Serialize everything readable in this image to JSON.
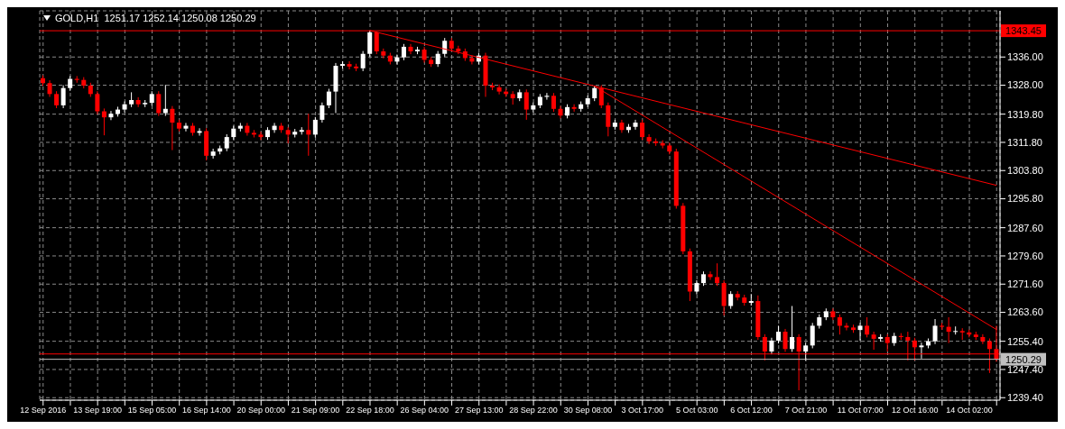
{
  "chart_data": {
    "type": "candlestick",
    "title": "GOLD,H1  1251.17 1252.14 1250.08 1250.29",
    "categories": [
      "12 Sep 2016",
      null,
      null,
      null,
      null,
      null,
      null,
      null,
      "13 Sep 19:00",
      null,
      null,
      null,
      null,
      null,
      null,
      null,
      "15 Sep 05:00",
      null,
      null,
      null,
      null,
      null,
      null,
      null,
      "16 Sep 14:00",
      null,
      null,
      null,
      null,
      null,
      null,
      null,
      "20 Sep 00:00",
      null,
      null,
      null,
      null,
      null,
      null,
      null,
      "21 Sep 09:00",
      null,
      null,
      null,
      null,
      null,
      null,
      null,
      "22 Sep 18:00",
      null,
      null,
      null,
      null,
      null,
      null,
      null,
      "26 Sep 04:00",
      null,
      null,
      null,
      null,
      null,
      null,
      null,
      "27 Sep 13:00",
      null,
      null,
      null,
      null,
      null,
      null,
      null,
      "28 Sep 22:00",
      null,
      null,
      null,
      null,
      null,
      null,
      null,
      "30 Sep 08:00",
      null,
      null,
      null,
      null,
      null,
      null,
      null,
      "3 Oct 17:00",
      null,
      null,
      null,
      null,
      null,
      null,
      null,
      "5 Oct 03:00",
      null,
      null,
      null,
      null,
      null,
      null,
      null,
      "6 Oct 12:00",
      null,
      null,
      null,
      null,
      null,
      null,
      null,
      "7 Oct 21:00",
      null,
      null,
      null,
      null,
      null,
      null,
      null,
      "11 Oct 07:00",
      null,
      null,
      null,
      null,
      null,
      null,
      null,
      "12 Oct 16:00",
      null,
      null,
      null,
      null,
      null,
      null,
      null,
      "14 Oct 02:00",
      null,
      null,
      null,
      null
    ],
    "ohlc": [
      [
        1330.0,
        1330.8,
        1327.8,
        1328.6
      ],
      [
        1328.6,
        1329.4,
        1324.7,
        1325.5
      ],
      [
        1325.5,
        1326.3,
        1321.5,
        1322.3
      ],
      [
        1322.3,
        1328.0,
        1321.5,
        1327.2
      ],
      [
        1327.2,
        1330.6,
        1326.4,
        1329.8
      ],
      [
        1329.8,
        1330.6,
        1328.7,
        1329.5
      ],
      [
        1329.5,
        1330.3,
        1327.1,
        1327.9
      ],
      [
        1327.9,
        1328.7,
        1324.7,
        1325.5
      ],
      [
        1325.5,
        1326.3,
        1319.8,
        1320.6
      ],
      [
        1320.6,
        1321.4,
        1313.8,
        1318.9
      ],
      [
        1318.9,
        1320.7,
        1318.1,
        1319.9
      ],
      [
        1319.9,
        1321.9,
        1319.1,
        1321.1
      ],
      [
        1321.1,
        1323.4,
        1320.3,
        1322.6
      ],
      [
        1322.6,
        1326.0,
        1321.8,
        1323.8
      ],
      [
        1323.8,
        1324.6,
        1321.8,
        1322.6
      ],
      [
        1322.6,
        1323.8,
        1321.8,
        1323.0
      ],
      [
        1323.0,
        1326.3,
        1322.2,
        1325.5
      ],
      [
        1325.5,
        1326.3,
        1319.3,
        1320.1
      ],
      [
        1320.1,
        1328.1,
        1319.3,
        1321.3
      ],
      [
        1321.3,
        1322.1,
        1309.6,
        1317.4
      ],
      [
        1317.4,
        1318.2,
        1314.9,
        1315.7
      ],
      [
        1315.7,
        1317.3,
        1314.9,
        1316.5
      ],
      [
        1316.5,
        1317.3,
        1313.7,
        1314.5
      ],
      [
        1314.5,
        1315.8,
        1313.7,
        1315.0
      ],
      [
        1315.0,
        1315.8,
        1306.7,
        1308.0
      ],
      [
        1308.0,
        1310.0,
        1307.2,
        1309.2
      ],
      [
        1309.2,
        1310.9,
        1308.4,
        1310.1
      ],
      [
        1310.1,
        1314.1,
        1309.3,
        1313.3
      ],
      [
        1313.3,
        1316.5,
        1312.5,
        1315.7
      ],
      [
        1315.7,
        1317.3,
        1314.9,
        1316.5
      ],
      [
        1316.5,
        1317.3,
        1313.7,
        1314.5
      ],
      [
        1314.5,
        1315.3,
        1313.2,
        1314.0
      ],
      [
        1314.0,
        1314.8,
        1312.5,
        1313.3
      ],
      [
        1313.3,
        1316.1,
        1312.5,
        1315.3
      ],
      [
        1315.3,
        1317.3,
        1314.5,
        1316.5
      ],
      [
        1316.5,
        1317.3,
        1314.5,
        1315.3
      ],
      [
        1315.3,
        1316.1,
        1311.5,
        1314.0
      ],
      [
        1314.0,
        1315.6,
        1313.2,
        1314.8
      ],
      [
        1314.8,
        1316.1,
        1314.0,
        1315.3
      ],
      [
        1315.3,
        1319.9,
        1308.0,
        1314.0
      ],
      [
        1314.0,
        1319.0,
        1313.2,
        1318.2
      ],
      [
        1318.2,
        1323.1,
        1317.4,
        1322.3
      ],
      [
        1322.3,
        1327.0,
        1321.5,
        1326.2
      ],
      [
        1326.2,
        1334.3,
        1320.1,
        1333.5
      ],
      [
        1333.5,
        1334.8,
        1332.7,
        1334.0
      ],
      [
        1334.0,
        1334.8,
        1332.5,
        1333.3
      ],
      [
        1333.3,
        1334.1,
        1332.0,
        1332.8
      ],
      [
        1332.8,
        1337.7,
        1332.0,
        1336.9
      ],
      [
        1336.9,
        1343.45,
        1336.1,
        1343.0
      ],
      [
        1343.0,
        1343.2,
        1336.8,
        1337.6
      ],
      [
        1337.6,
        1338.4,
        1335.6,
        1336.4
      ],
      [
        1336.4,
        1337.2,
        1333.9,
        1334.7
      ],
      [
        1334.7,
        1336.7,
        1333.9,
        1335.9
      ],
      [
        1335.9,
        1339.7,
        1335.1,
        1338.9
      ],
      [
        1338.9,
        1339.7,
        1336.8,
        1337.6
      ],
      [
        1337.6,
        1338.9,
        1336.8,
        1338.1
      ],
      [
        1338.1,
        1338.9,
        1334.4,
        1335.2
      ],
      [
        1335.2,
        1336.0,
        1333.2,
        1334.0
      ],
      [
        1334.0,
        1337.7,
        1333.2,
        1336.9
      ],
      [
        1336.9,
        1341.4,
        1336.1,
        1340.6
      ],
      [
        1340.6,
        1341.4,
        1337.6,
        1338.4
      ],
      [
        1338.4,
        1339.2,
        1336.8,
        1337.6
      ],
      [
        1337.6,
        1338.4,
        1334.9,
        1335.7
      ],
      [
        1335.7,
        1336.5,
        1333.9,
        1334.7
      ],
      [
        1334.7,
        1337.2,
        1333.9,
        1336.4
      ],
      [
        1336.4,
        1337.2,
        1324.7,
        1327.9
      ],
      [
        1327.9,
        1328.7,
        1326.6,
        1327.4
      ],
      [
        1327.4,
        1328.2,
        1325.4,
        1326.2
      ],
      [
        1326.2,
        1327.0,
        1324.7,
        1325.5
      ],
      [
        1325.5,
        1326.3,
        1322.5,
        1324.3
      ],
      [
        1324.3,
        1326.8,
        1323.5,
        1326.0
      ],
      [
        1326.0,
        1326.8,
        1318.2,
        1321.1
      ],
      [
        1321.1,
        1323.1,
        1320.3,
        1322.3
      ],
      [
        1322.3,
        1325.5,
        1321.5,
        1324.7
      ],
      [
        1324.7,
        1325.8,
        1323.9,
        1325.0
      ],
      [
        1325.0,
        1325.8,
        1320.5,
        1321.3
      ],
      [
        1321.3,
        1322.1,
        1318.6,
        1319.4
      ],
      [
        1319.4,
        1322.6,
        1318.6,
        1321.8
      ],
      [
        1321.8,
        1322.6,
        1320.5,
        1321.3
      ],
      [
        1321.3,
        1323.4,
        1320.5,
        1322.6
      ],
      [
        1322.6,
        1325.1,
        1321.8,
        1324.3
      ],
      [
        1324.3,
        1327.9,
        1323.5,
        1327.2
      ],
      [
        1327.2,
        1328.0,
        1321.5,
        1322.3
      ],
      [
        1322.3,
        1323.1,
        1313.5,
        1316.2
      ],
      [
        1316.2,
        1318.2,
        1315.4,
        1317.4
      ],
      [
        1317.4,
        1318.2,
        1314.5,
        1315.3
      ],
      [
        1315.3,
        1317.0,
        1314.5,
        1316.2
      ],
      [
        1316.2,
        1318.2,
        1315.4,
        1317.4
      ],
      [
        1317.4,
        1318.2,
        1312.5,
        1313.3
      ],
      [
        1313.3,
        1314.1,
        1311.3,
        1312.1
      ],
      [
        1312.1,
        1312.9,
        1310.8,
        1311.6
      ],
      [
        1311.6,
        1312.4,
        1310.1,
        1310.9
      ],
      [
        1310.9,
        1311.7,
        1308.4,
        1309.2
      ],
      [
        1309.2,
        1310.0,
        1293.0,
        1293.8
      ],
      [
        1293.8,
        1294.6,
        1280.1,
        1280.9
      ],
      [
        1280.9,
        1281.7,
        1266.8,
        1269.5
      ],
      [
        1269.5,
        1272.7,
        1268.7,
        1271.9
      ],
      [
        1271.9,
        1275.2,
        1271.1,
        1274.4
      ],
      [
        1274.4,
        1275.2,
        1272.8,
        1273.6
      ],
      [
        1273.6,
        1277.5,
        1271.1,
        1271.9
      ],
      [
        1271.9,
        1272.7,
        1262.7,
        1265.4
      ],
      [
        1265.4,
        1269.6,
        1264.6,
        1268.8
      ],
      [
        1268.8,
        1269.6,
        1267.0,
        1267.8
      ],
      [
        1267.8,
        1268.6,
        1265.5,
        1266.3
      ],
      [
        1266.3,
        1268.8,
        1265.5,
        1266.8
      ],
      [
        1266.8,
        1268.4,
        1255.8,
        1256.6
      ],
      [
        1256.6,
        1257.4,
        1250.0,
        1252.5
      ],
      [
        1252.5,
        1256.4,
        1251.7,
        1255.6
      ],
      [
        1255.6,
        1259.8,
        1254.8,
        1258.1
      ],
      [
        1258.1,
        1258.9,
        1252.4,
        1253.2
      ],
      [
        1253.2,
        1265.4,
        1252.4,
        1256.6
      ],
      [
        1256.6,
        1257.4,
        1241.5,
        1252.5
      ],
      [
        1252.5,
        1255.0,
        1249.9,
        1254.2
      ],
      [
        1254.2,
        1260.6,
        1253.4,
        1259.8
      ],
      [
        1259.8,
        1263.0,
        1259.0,
        1262.2
      ],
      [
        1262.2,
        1264.7,
        1261.4,
        1263.9
      ],
      [
        1263.9,
        1264.7,
        1261.4,
        1262.2
      ],
      [
        1262.2,
        1263.0,
        1257.3,
        1259.8
      ],
      [
        1259.8,
        1260.6,
        1258.5,
        1259.3
      ],
      [
        1259.3,
        1260.1,
        1257.8,
        1258.6
      ],
      [
        1258.6,
        1260.6,
        1255.6,
        1259.8
      ],
      [
        1259.8,
        1262.2,
        1256.5,
        1257.3
      ],
      [
        1257.3,
        1258.1,
        1253.0,
        1256.1
      ],
      [
        1256.1,
        1257.4,
        1255.3,
        1256.6
      ],
      [
        1256.6,
        1257.4,
        1252.5,
        1254.9
      ],
      [
        1254.9,
        1257.8,
        1254.1,
        1256.9
      ],
      [
        1256.9,
        1257.7,
        1255.8,
        1256.6
      ],
      [
        1256.6,
        1258.1,
        1250.0,
        1255.6
      ],
      [
        1255.6,
        1256.4,
        1250.0,
        1253.7
      ],
      [
        1253.7,
        1255.0,
        1250.5,
        1254.2
      ],
      [
        1254.2,
        1256.2,
        1253.4,
        1255.4
      ],
      [
        1255.4,
        1261.7,
        1254.6,
        1259.8
      ],
      [
        1259.8,
        1260.6,
        1258.7,
        1259.5
      ],
      [
        1259.5,
        1262.2,
        1254.9,
        1258.1
      ],
      [
        1258.1,
        1259.6,
        1257.3,
        1258.3
      ],
      [
        1258.3,
        1259.1,
        1255.8,
        1257.9
      ],
      [
        1257.9,
        1258.7,
        1256.5,
        1257.3
      ],
      [
        1257.3,
        1258.1,
        1255.8,
        1256.6
      ],
      [
        1256.6,
        1257.4,
        1254.6,
        1255.4
      ],
      [
        1255.4,
        1256.2,
        1246.4,
        1253.2
      ],
      [
        1253.2,
        1259.8,
        1249.6,
        1250.29
      ]
    ],
    "colors": [
      "#ff0000",
      "#ff0000",
      "#ff0000",
      "#ffffff",
      "#ffffff",
      "#ff0000",
      "#ff0000",
      "#ff0000",
      "#ff0000",
      "#ff0000",
      "#ffffff",
      "#ffffff",
      "#ffffff",
      "#ffffff",
      "#ff0000",
      "#ffffff",
      "#ffffff",
      "#ff0000",
      "#ffffff",
      "#ff0000",
      "#ff0000",
      "#ffffff",
      "#ff0000",
      "#ffffff",
      "#ff0000",
      "#ffffff",
      "#ffffff",
      "#ffffff",
      "#ffffff",
      "#ffffff",
      "#ff0000",
      "#ff0000",
      "#ff0000",
      "#ffffff",
      "#ffffff",
      "#ff0000",
      "#ff0000",
      "#ffffff",
      "#ffffff",
      "#ff0000",
      "#ffffff",
      "#ffffff",
      "#ffffff",
      "#ffffff",
      "#ffffff",
      "#ff0000",
      "#ff0000",
      "#ffffff",
      "#ffffff",
      "#ff0000",
      "#ff0000",
      "#ff0000",
      "#ffffff",
      "#ffffff",
      "#ff0000",
      "#ffffff",
      "#ff0000",
      "#ff0000",
      "#ffffff",
      "#ffffff",
      "#ff0000",
      "#ff0000",
      "#ff0000",
      "#ff0000",
      "#ffffff",
      "#ff0000",
      "#ff0000",
      "#ff0000",
      "#ff0000",
      "#ff0000",
      "#ffffff",
      "#ff0000",
      "#ffffff",
      "#ffffff",
      "#ffffff",
      "#ff0000",
      "#ff0000",
      "#ffffff",
      "#ff0000",
      "#ffffff",
      "#ffffff",
      "#ffffff",
      "#ff0000",
      "#ff0000",
      "#ffffff",
      "#ff0000",
      "#ffffff",
      "#ffffff",
      "#ff0000",
      "#ff0000",
      "#ff0000",
      "#ff0000",
      "#ff0000",
      "#ff0000",
      "#ff0000",
      "#ff0000",
      "#ffffff",
      "#ffffff",
      "#ff0000",
      "#ff0000",
      "#ff0000",
      "#ffffff",
      "#ff0000",
      "#ff0000",
      "#ffffff",
      "#ff0000",
      "#ff0000",
      "#ffffff",
      "#ffffff",
      "#ff0000",
      "#ffffff",
      "#ff0000",
      "#ffffff",
      "#ffffff",
      "#ffffff",
      "#ffffff",
      "#ff0000",
      "#ff0000",
      "#ff0000",
      "#ff0000",
      "#ffffff",
      "#ff0000",
      "#ff0000",
      "#ffffff",
      "#ff0000",
      "#ffffff",
      "#ff0000",
      "#ff0000",
      "#ff0000",
      "#ffffff",
      "#ffffff",
      "#ffffff",
      "#ff0000",
      "#ff0000",
      "#ffffff",
      "#ff0000",
      "#ff0000",
      "#ff0000",
      "#ff0000",
      "#ff0000",
      "#ff0000"
    ],
    "series": [
      {
        "type": "line",
        "color": "#ff0000",
        "values": [
          null,
          null,
          null,
          null,
          null,
          null,
          null,
          null,
          null,
          null,
          null,
          null,
          null,
          null,
          null,
          null,
          null,
          null,
          null,
          null,
          null,
          null,
          null,
          null,
          null,
          null,
          null,
          null,
          null,
          null,
          null,
          null,
          null,
          null,
          null,
          null,
          null,
          null,
          null,
          null,
          null,
          null,
          null,
          null,
          null,
          null,
          null,
          null,
          1343.5,
          null,
          null,
          null,
          null,
          null,
          null,
          null,
          null,
          null,
          null,
          null,
          null,
          null,
          null,
          null,
          null,
          null,
          null,
          null,
          null,
          null,
          null,
          null,
          null,
          null,
          null,
          null,
          null,
          null,
          null,
          null,
          null,
          null,
          null,
          null,
          null,
          null,
          null,
          null,
          null,
          null,
          null,
          null,
          null,
          null,
          null,
          null,
          null,
          null,
          null,
          null,
          null,
          null,
          null,
          null,
          null,
          null,
          null,
          null,
          null,
          null,
          null,
          null,
          null,
          null,
          null,
          null,
          null,
          null,
          null,
          null,
          null,
          null,
          null,
          null,
          null,
          null,
          null,
          null,
          null,
          null,
          null,
          null,
          null,
          null,
          null,
          null,
          null,
          null,
          null,
          null,
          1299.6
        ]
      },
      {
        "type": "line",
        "color": "#ff0000",
        "values": [
          null,
          null,
          null,
          null,
          null,
          null,
          null,
          null,
          null,
          null,
          null,
          null,
          null,
          null,
          null,
          null,
          null,
          null,
          null,
          null,
          null,
          null,
          null,
          null,
          null,
          null,
          null,
          null,
          null,
          null,
          null,
          null,
          null,
          null,
          null,
          null,
          null,
          null,
          null,
          null,
          null,
          null,
          null,
          null,
          null,
          null,
          null,
          null,
          null,
          null,
          null,
          null,
          null,
          null,
          null,
          null,
          null,
          null,
          null,
          null,
          null,
          null,
          null,
          null,
          null,
          null,
          null,
          null,
          null,
          null,
          null,
          null,
          null,
          null,
          null,
          null,
          null,
          null,
          null,
          null,
          null,
          1327.7,
          null,
          null,
          null,
          null,
          null,
          null,
          null,
          null,
          null,
          null,
          null,
          null,
          null,
          null,
          null,
          null,
          null,
          null,
          null,
          null,
          null,
          null,
          null,
          null,
          null,
          null,
          null,
          null,
          null,
          null,
          null,
          null,
          null,
          null,
          null,
          null,
          null,
          null,
          null,
          null,
          null,
          null,
          null,
          null,
          null,
          null,
          null,
          null,
          null,
          null,
          null,
          null,
          null,
          null,
          null,
          null,
          null,
          null,
          1258.7
        ]
      }
    ],
    "ylim": [
      1238.7,
      1349.1
    ],
    "yticks": [
      {
        "value": 1239.4,
        "label": "1239.40"
      },
      {
        "value": 1247.4,
        "label": "1247.40"
      },
      {
        "value": 1255.4,
        "label": "1255.40"
      },
      {
        "value": 1263.6,
        "label": "1263.60"
      },
      {
        "value": 1271.6,
        "label": "1271.60"
      },
      {
        "value": 1279.6,
        "label": "1279.60"
      },
      {
        "value": 1287.6,
        "label": "1287.60"
      },
      {
        "value": 1295.8,
        "label": "1295.80"
      },
      {
        "value": 1303.8,
        "label": "1303.80"
      },
      {
        "value": 1311.8,
        "label": "1311.80"
      },
      {
        "value": 1319.8,
        "label": "1319.80"
      },
      {
        "value": 1328,
        "label": "1328.00"
      },
      {
        "value": 1336,
        "label": "1336.00"
      }
    ],
    "ref_lines": [
      {
        "axis": "y",
        "value": 1343.45,
        "label": "1343.45",
        "color": "#ff0000"
      },
      {
        "axis": "y",
        "value": 1251.8,
        "color": "#ff0000"
      },
      {
        "axis": "y",
        "value": 1250.29,
        "label": "1250.29",
        "color": "#c0c0c0"
      }
    ],
    "grid": true
  }
}
